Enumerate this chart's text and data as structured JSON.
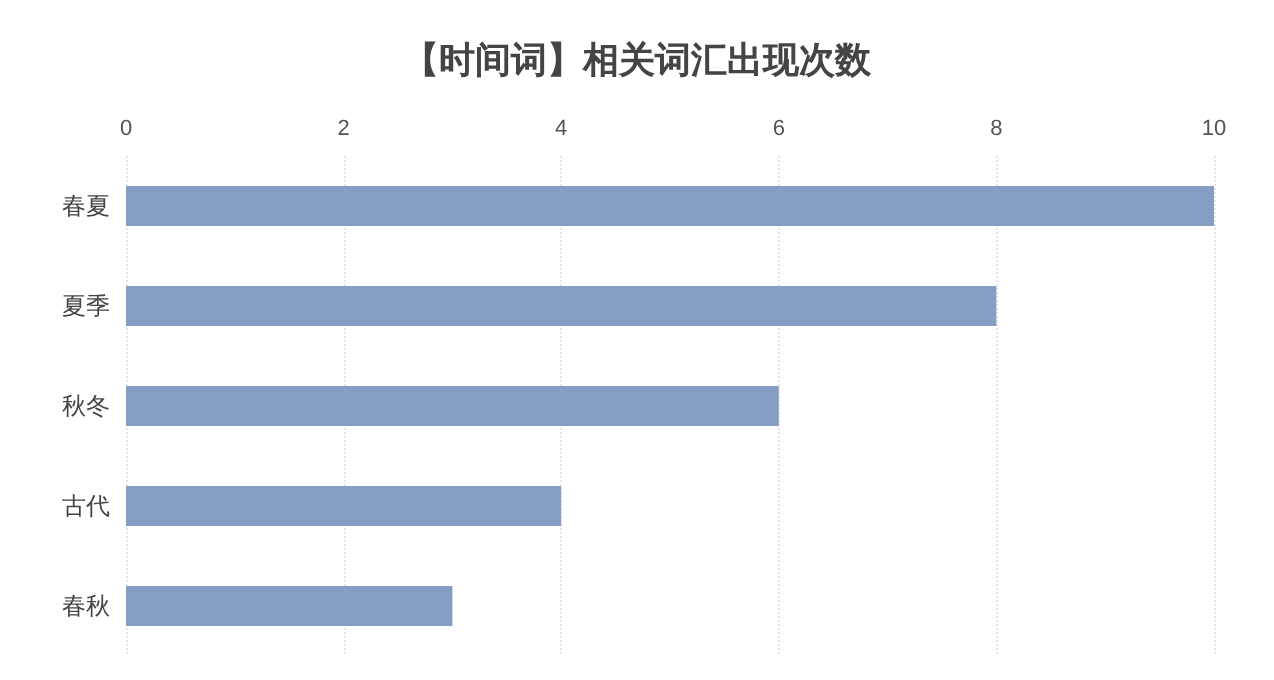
{
  "chart_data": {
    "type": "bar",
    "orientation": "horizontal",
    "title": "【时间词】相关词汇出现次数",
    "categories": [
      "春夏",
      "夏季",
      "秋冬",
      "古代",
      "春秋"
    ],
    "values": [
      10,
      8,
      6,
      4,
      3
    ],
    "color": "#869dc4",
    "xlim": [
      0,
      10
    ],
    "xticks": [
      0,
      2,
      4,
      6,
      8,
      10
    ],
    "grid": "x"
  }
}
